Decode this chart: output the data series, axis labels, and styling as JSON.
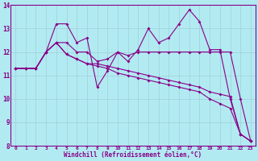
{
  "xlabel": "Windchill (Refroidissement éolien,°C)",
  "background_color": "#b2eaf2",
  "grid_color": "#a0d0d8",
  "line_color": "#880088",
  "xlim": [
    -0.5,
    23.5
  ],
  "ylim": [
    8,
    14
  ],
  "xticks": [
    0,
    1,
    2,
    3,
    4,
    5,
    6,
    7,
    8,
    9,
    10,
    11,
    12,
    13,
    14,
    15,
    16,
    17,
    18,
    19,
    20,
    21,
    22,
    23
  ],
  "yticks": [
    8,
    9,
    10,
    11,
    12,
    13,
    14
  ],
  "series": [
    [
      11.3,
      11.3,
      11.3,
      12.0,
      13.2,
      13.2,
      12.4,
      12.6,
      10.5,
      11.2,
      12.0,
      11.6,
      12.1,
      13.0,
      12.4,
      12.6,
      13.2,
      13.8,
      13.3,
      12.1,
      12.1,
      10.0,
      8.5,
      8.2
    ],
    [
      11.3,
      11.3,
      11.3,
      12.0,
      12.4,
      12.4,
      12.0,
      12.0,
      11.6,
      11.7,
      12.0,
      11.85,
      12.0,
      12.0,
      12.0,
      12.0,
      12.0,
      12.0,
      12.0,
      12.0,
      12.0,
      12.0,
      10.0,
      8.2
    ],
    [
      11.3,
      11.3,
      11.3,
      12.0,
      12.4,
      11.9,
      11.7,
      11.5,
      11.5,
      11.4,
      11.3,
      11.2,
      11.1,
      11.0,
      10.9,
      10.8,
      10.7,
      10.6,
      10.5,
      10.3,
      10.2,
      10.1,
      8.5,
      8.2
    ],
    [
      11.3,
      11.3,
      11.3,
      12.0,
      12.4,
      11.9,
      11.7,
      11.5,
      11.4,
      11.3,
      11.1,
      11.0,
      10.9,
      10.8,
      10.7,
      10.6,
      10.5,
      10.4,
      10.3,
      10.0,
      9.8,
      9.6,
      8.5,
      8.2
    ]
  ]
}
